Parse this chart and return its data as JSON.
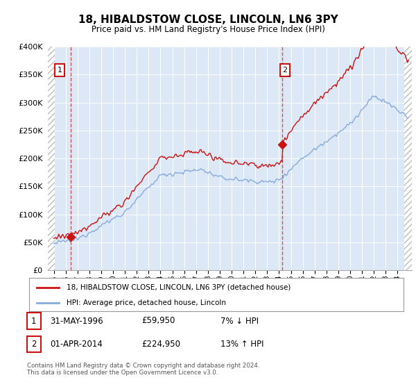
{
  "title": "18, HIBALDSTOW CLOSE, LINCOLN, LN6 3PY",
  "subtitle": "Price paid vs. HM Land Registry's House Price Index (HPI)",
  "ylim": [
    0,
    400000
  ],
  "xlim_start": 1994.5,
  "xlim_end": 2025.2,
  "hpi_color": "#88aadd",
  "price_color": "#cc1111",
  "transaction1_year": 1996.42,
  "transaction1_price": 59950,
  "transaction2_year": 2014.25,
  "transaction2_price": 224950,
  "legend_line1": "18, HIBALDSTOW CLOSE, LINCOLN, LN6 3PY (detached house)",
  "legend_line2": "HPI: Average price, detached house, Lincoln",
  "annotation1_date": "31-MAY-1996",
  "annotation1_price": "£59,950",
  "annotation1_hpi": "7% ↓ HPI",
  "annotation2_date": "01-APR-2014",
  "annotation2_price": "£224,950",
  "annotation2_hpi": "13% ↑ HPI",
  "footer": "Contains HM Land Registry data © Crown copyright and database right 2024.\nThis data is licensed under the Open Government Licence v3.0.",
  "bg_color": "#dce8f5",
  "ytick_labels": [
    "£0",
    "£50K",
    "£100K",
    "£150K",
    "£200K",
    "£250K",
    "£300K",
    "£350K",
    "£400K"
  ],
  "ytick_values": [
    0,
    50000,
    100000,
    150000,
    200000,
    250000,
    300000,
    350000,
    400000
  ],
  "hatch_left_end": 1995.08,
  "hatch_right_start": 2024.58
}
